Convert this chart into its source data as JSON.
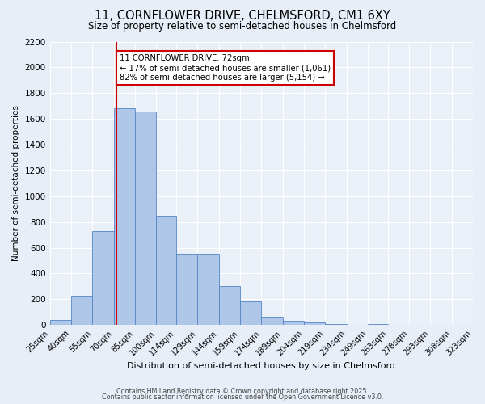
{
  "title1": "11, CORNFLOWER DRIVE, CHELMSFORD, CM1 6XY",
  "title2": "Size of property relative to semi-detached houses in Chelmsford",
  "xlabel": "Distribution of semi-detached houses by size in Chelmsford",
  "ylabel": "Number of semi-detached properties",
  "categories": [
    "25sqm",
    "40sqm",
    "55sqm",
    "70sqm",
    "85sqm",
    "100sqm",
    "114sqm",
    "129sqm",
    "144sqm",
    "159sqm",
    "174sqm",
    "189sqm",
    "204sqm",
    "219sqm",
    "234sqm",
    "249sqm",
    "263sqm",
    "278sqm",
    "293sqm",
    "308sqm",
    "323sqm"
  ],
  "bin_edges": [
    25,
    40,
    55,
    70,
    85,
    100,
    114,
    129,
    144,
    159,
    174,
    189,
    204,
    219,
    234,
    249,
    263,
    278,
    293,
    308,
    323
  ],
  "bar_values": [
    40,
    225,
    730,
    1680,
    1660,
    845,
    555,
    555,
    300,
    185,
    65,
    35,
    20,
    10,
    0,
    10,
    0,
    0,
    0,
    0,
    0
  ],
  "bar_color": "#aec6e8",
  "bar_edge_color": "#5585c5",
  "property_line_x": 72,
  "property_line_color": "#cc0000",
  "annotation_text": "11 CORNFLOWER DRIVE: 72sqm\n← 17% of semi-detached houses are smaller (1,061)\n82% of semi-detached houses are larger (5,154) →",
  "annotation_box_color": "#ffffff",
  "annotation_box_edge_color": "#cc0000",
  "ylim": [
    0,
    2200
  ],
  "yticks": [
    0,
    200,
    400,
    600,
    800,
    1000,
    1200,
    1400,
    1600,
    1800,
    2000,
    2200
  ],
  "xlim_left": 25,
  "xlim_right": 323,
  "footer1": "Contains HM Land Registry data © Crown copyright and database right 2025.",
  "footer2": "Contains public sector information licensed under the Open Government Licence v3.0.",
  "bg_color": "#e8eef7",
  "plot_bg_color": "#eaf0f8",
  "grid_color": "#ffffff",
  "title1_fontsize": 10.5,
  "title2_fontsize": 8.5,
  "ylabel_fontsize": 7.5,
  "xlabel_fontsize": 8.0,
  "tick_fontsize": 7,
  "ytick_fontsize": 7.5,
  "annot_fontsize": 7.2,
  "footer_fontsize": 5.8
}
